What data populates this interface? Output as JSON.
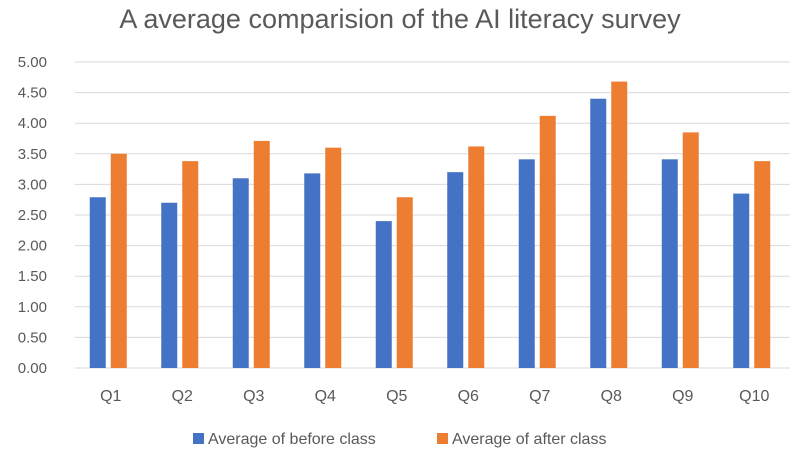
{
  "chart_data": {
    "type": "bar",
    "title": "A average comparision of the AI literacy survey",
    "categories": [
      "Q1",
      "Q2",
      "Q3",
      "Q4",
      "Q5",
      "Q6",
      "Q7",
      "Q8",
      "Q9",
      "Q10"
    ],
    "series": [
      {
        "name": "Average of before class",
        "color": "#4472C4",
        "values": [
          2.79,
          2.7,
          3.1,
          3.18,
          2.4,
          3.2,
          3.41,
          4.4,
          3.41,
          2.85
        ]
      },
      {
        "name": "Average of after class",
        "color": "#ED7D31",
        "values": [
          3.5,
          3.38,
          3.71,
          3.6,
          2.79,
          3.62,
          4.12,
          4.68,
          3.85,
          3.38
        ]
      }
    ],
    "ylim": [
      0,
      5
    ],
    "yticks": [
      "0.00",
      "0.50",
      "1.00",
      "1.50",
      "2.00",
      "2.50",
      "3.00",
      "3.50",
      "4.00",
      "4.50",
      "5.00"
    ],
    "grid": true,
    "gridline_color": "#D9D9D9",
    "legend_position": "bottom"
  }
}
